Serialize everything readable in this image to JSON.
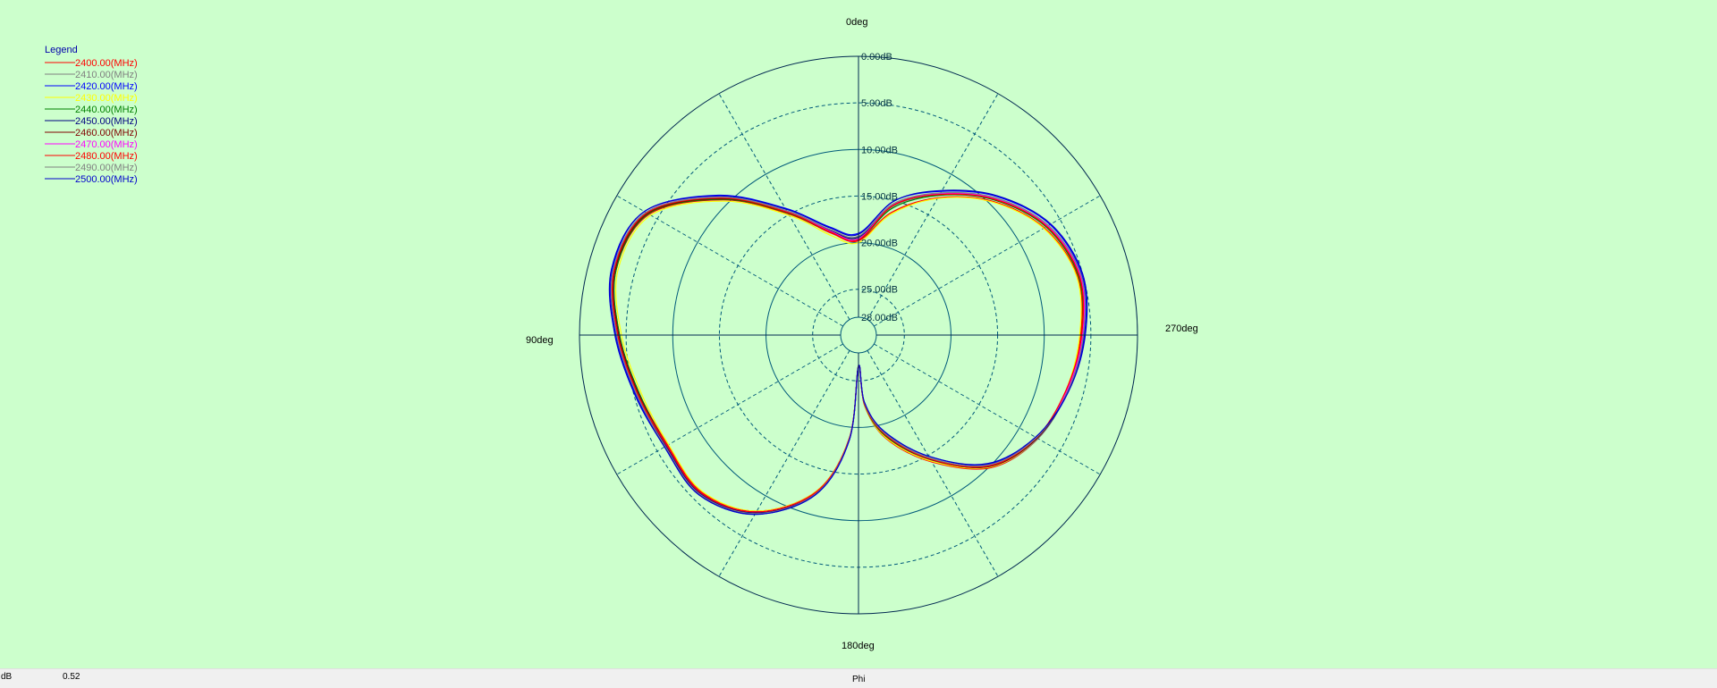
{
  "chart_data": {
    "type": "polar-line",
    "angle_labels": {
      "top": "0deg",
      "left": "90deg",
      "right": "270deg",
      "bottom": "180deg"
    },
    "angle_direction": "counterclockwise from top",
    "radial_range_db": [
      -28,
      0
    ],
    "radial_ticks": [
      {
        "value": 0,
        "label": "0.00dB",
        "style": "solid"
      },
      {
        "value": -5,
        "label": "5.00dB",
        "style": "dashed"
      },
      {
        "value": -10,
        "label": "10.00dB",
        "style": "solid"
      },
      {
        "value": -15,
        "label": "15.00dB",
        "style": "dashed"
      },
      {
        "value": -20,
        "label": "20.00dB",
        "style": "solid"
      },
      {
        "value": -25,
        "label": "25.00dB",
        "style": "dashed"
      },
      {
        "value": -28,
        "label": "28.00dB",
        "style": "solid"
      }
    ],
    "legend": {
      "title": "Legend",
      "position": "top-left"
    },
    "angles_deg": [
      0,
      15,
      30,
      45,
      60,
      75,
      90,
      105,
      120,
      135,
      150,
      165,
      175,
      180,
      185,
      195,
      210,
      225,
      240,
      255,
      270,
      285,
      300,
      315,
      330,
      345
    ],
    "series": [
      {
        "name": "2400.00(MHz)",
        "color": "#ff0000",
        "values": [
          -19.8,
          -18.6,
          -14.9,
          -9.4,
          -4.0,
          -3.0,
          -4.3,
          -5.6,
          -6.3,
          -6.1,
          -8.1,
          -12.6,
          -18.9,
          -26.6,
          -22.3,
          -18.4,
          -14.2,
          -9.8,
          -7.7,
          -6.8,
          -6.1,
          -5.6,
          -6.9,
          -9.6,
          -12.9,
          -16.3
        ]
      },
      {
        "name": "2410.00(MHz)",
        "color": "#808080",
        "values": [
          -19.5,
          -18.3,
          -14.6,
          -9.1,
          -3.8,
          -2.9,
          -4.2,
          -5.4,
          -6.1,
          -5.9,
          -7.9,
          -12.4,
          -18.7,
          -26.6,
          -22.4,
          -18.6,
          -14.4,
          -9.9,
          -7.7,
          -6.7,
          -5.9,
          -5.4,
          -6.6,
          -9.3,
          -12.5,
          -15.6
        ]
      },
      {
        "name": "2420.00(MHz)",
        "color": "#0000ff",
        "values": [
          -19.0,
          -17.9,
          -14.2,
          -8.7,
          -3.4,
          -2.6,
          -3.9,
          -5.2,
          -5.9,
          -5.7,
          -7.7,
          -12.2,
          -18.6,
          -26.6,
          -22.6,
          -19.2,
          -14.9,
          -10.3,
          -7.9,
          -6.6,
          -5.7,
          -5.1,
          -6.2,
          -8.9,
          -12.1,
          -15.0
        ]
      },
      {
        "name": "2430.00(MHz)",
        "color": "#ffff00",
        "values": [
          -20.0,
          -18.9,
          -15.1,
          -9.6,
          -4.2,
          -3.2,
          -4.5,
          -5.8,
          -6.4,
          -6.2,
          -8.1,
          -12.6,
          -18.9,
          -26.6,
          -22.3,
          -18.5,
          -14.3,
          -9.9,
          -7.8,
          -6.9,
          -6.2,
          -5.7,
          -7.0,
          -9.7,
          -13.0,
          -16.5
        ]
      },
      {
        "name": "2440.00(MHz)",
        "color": "#008000",
        "values": [
          -19.7,
          -18.5,
          -14.8,
          -9.3,
          -3.9,
          -3.0,
          -4.3,
          -5.6,
          -6.2,
          -6.0,
          -8.0,
          -12.5,
          -18.8,
          -26.6,
          -22.4,
          -18.7,
          -14.5,
          -10.0,
          -7.8,
          -6.8,
          -6.0,
          -5.5,
          -6.7,
          -9.4,
          -12.6,
          -15.8
        ]
      },
      {
        "name": "2450.00(MHz)",
        "color": "#000080",
        "values": [
          -19.4,
          -18.3,
          -14.6,
          -9.1,
          -3.7,
          -2.8,
          -4.1,
          -5.4,
          -6.1,
          -5.9,
          -7.9,
          -12.4,
          -18.8,
          -26.6,
          -22.5,
          -18.9,
          -14.6,
          -10.1,
          -7.8,
          -6.7,
          -5.8,
          -5.3,
          -6.5,
          -9.2,
          -12.4,
          -15.4
        ]
      },
      {
        "name": "2460.00(MHz)",
        "color": "#800000",
        "values": [
          -19.6,
          -18.4,
          -14.7,
          -9.2,
          -3.8,
          -2.9,
          -4.2,
          -5.5,
          -6.2,
          -6.0,
          -8.0,
          -12.5,
          -18.8,
          -26.6,
          -22.5,
          -18.8,
          -14.5,
          -10.0,
          -7.8,
          -6.8,
          -6.0,
          -5.4,
          -6.6,
          -9.3,
          -12.5,
          -15.5
        ]
      },
      {
        "name": "2470.00(MHz)",
        "color": "#ff00ff",
        "values": [
          -19.6,
          -18.4,
          -14.6,
          -9.0,
          -3.6,
          -2.8,
          -4.1,
          -5.4,
          -6.2,
          -6.0,
          -8.0,
          -12.5,
          -18.8,
          -26.6,
          -22.5,
          -18.9,
          -14.6,
          -10.1,
          -7.9,
          -6.8,
          -5.9,
          -5.3,
          -6.5,
          -9.2,
          -12.4,
          -15.4
        ]
      },
      {
        "name": "2480.00(MHz)",
        "color": "#ff0000",
        "values": [
          -19.7,
          -18.5,
          -14.7,
          -9.1,
          -3.7,
          -2.8,
          -4.1,
          -5.4,
          -6.2,
          -6.0,
          -8.0,
          -12.5,
          -18.8,
          -26.6,
          -22.5,
          -18.9,
          -14.6,
          -10.1,
          -7.9,
          -6.9,
          -6.0,
          -5.4,
          -6.6,
          -9.3,
          -12.5,
          -15.5
        ]
      },
      {
        "name": "2490.00(MHz)",
        "color": "#808080",
        "values": [
          -19.3,
          -18.2,
          -14.5,
          -9.0,
          -3.6,
          -2.7,
          -4.0,
          -5.3,
          -6.0,
          -5.8,
          -7.8,
          -12.3,
          -18.7,
          -26.6,
          -22.6,
          -19.0,
          -14.7,
          -10.2,
          -7.9,
          -6.7,
          -5.8,
          -5.2,
          -6.4,
          -9.1,
          -12.3,
          -15.3
        ]
      },
      {
        "name": "2500.00(MHz)",
        "color": "#0000cc",
        "values": [
          -19.1,
          -18.0,
          -14.3,
          -8.8,
          -3.4,
          -2.5,
          -3.8,
          -5.1,
          -5.9,
          -5.7,
          -7.7,
          -12.2,
          -18.6,
          -26.6,
          -22.7,
          -19.2,
          -14.9,
          -10.4,
          -8.0,
          -6.6,
          -5.6,
          -5.0,
          -6.1,
          -8.8,
          -12.0,
          -15.0
        ]
      }
    ]
  },
  "statusbar": {
    "unit": "dB",
    "value": "0.52",
    "axis": "Phi"
  }
}
